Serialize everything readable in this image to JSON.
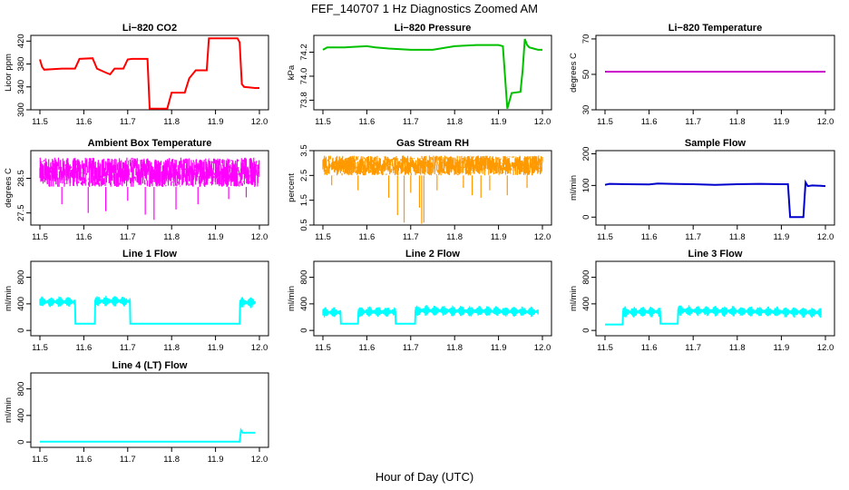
{
  "figure": {
    "title": "FEF_140707  1 Hz Diagnostics Zoomed AM",
    "xlabel": "Hour of Day (UTC)"
  },
  "chart_data": [
    {
      "type": "line",
      "title": "Li−820 CO2",
      "ylabel": "Licor ppm",
      "color": "#ff0000",
      "xlim": [
        11.5,
        12.0
      ],
      "ylim": [
        300,
        430
      ],
      "xticks": [
        "11.5",
        "11.6",
        "11.7",
        "11.8",
        "11.9",
        "12.0"
      ],
      "yticks": [
        {
          "v": 300,
          "t": "300"
        },
        {
          "v": 340,
          "t": "340"
        },
        {
          "v": 380,
          "t": "380"
        },
        {
          "v": 420,
          "t": "420"
        }
      ],
      "series": [
        {
          "x": [
            11.5,
            11.505,
            11.51,
            11.55,
            11.58,
            11.59,
            11.62,
            11.63,
            11.65,
            11.66,
            11.67,
            11.69,
            11.7,
            11.71,
            11.745,
            11.75,
            11.76,
            11.79,
            11.8,
            11.81,
            11.83,
            11.84,
            11.855,
            11.88,
            11.885,
            11.91,
            11.95,
            11.955,
            11.96,
            11.965,
            11.99,
            12.0
          ],
          "y": [
            388,
            375,
            370,
            372,
            372,
            389,
            390,
            372,
            365,
            362,
            372,
            372,
            388,
            389,
            389,
            302,
            302,
            302,
            330,
            330,
            330,
            355,
            369,
            369,
            425,
            425,
            425,
            418,
            345,
            340,
            338,
            338
          ]
        }
      ]
    },
    {
      "type": "line",
      "title": "Li−820 Pressure",
      "ylabel": "kPa",
      "color": "#00c000",
      "xlim": [
        11.5,
        12.0
      ],
      "ylim": [
        73.72,
        74.34
      ],
      "xticks": [
        "11.5",
        "11.6",
        "11.7",
        "11.8",
        "11.9",
        "12.0"
      ],
      "yticks": [
        {
          "v": 73.8,
          "t": "73.8"
        },
        {
          "v": 74.0,
          "t": "74.0"
        },
        {
          "v": 74.2,
          "t": "74.2"
        }
      ],
      "series": [
        {
          "x": [
            11.5,
            11.51,
            11.55,
            11.6,
            11.62,
            11.65,
            11.7,
            11.75,
            11.8,
            11.85,
            11.9,
            11.91,
            11.92,
            11.93,
            11.95,
            11.955,
            11.96,
            11.965,
            11.97,
            11.99,
            12.0
          ],
          "y": [
            74.22,
            74.24,
            74.24,
            74.25,
            74.24,
            74.23,
            74.22,
            74.22,
            74.25,
            74.26,
            74.26,
            74.25,
            73.73,
            73.86,
            73.87,
            74.05,
            74.31,
            74.26,
            74.24,
            74.22,
            74.22
          ]
        }
      ]
    },
    {
      "type": "line",
      "title": "Li−820 Temperature",
      "ylabel": "degrees C",
      "color": "#cc00cc",
      "xlim": [
        11.5,
        12.0
      ],
      "ylim": [
        30,
        72
      ],
      "xticks": [
        "11.5",
        "11.6",
        "11.7",
        "11.8",
        "11.9",
        "12.0"
      ],
      "yticks": [
        {
          "v": 30,
          "t": "30"
        },
        {
          "v": 50,
          "t": "50"
        },
        {
          "v": 70,
          "t": "70"
        }
      ],
      "series": [
        {
          "x": [
            11.5,
            12.0
          ],
          "y": [
            51.5,
            51.5
          ]
        }
      ]
    },
    {
      "type": "line",
      "title": "Ambient Box Temperature",
      "ylabel": "degrees C",
      "color": "#ff00ff",
      "xlim": [
        11.5,
        12.0
      ],
      "ylim": [
        27.15,
        29.3
      ],
      "xticks": [
        "11.5",
        "11.6",
        "11.7",
        "11.8",
        "11.9",
        "12.0"
      ],
      "yticks": [
        {
          "v": 27.5,
          "t": "27.5"
        },
        {
          "v": 28.5,
          "t": "28.5"
        }
      ],
      "band": {
        "low": 28.25,
        "high": 29.1
      },
      "spikes": [
        {
          "x": 11.55,
          "y": 27.75
        },
        {
          "x": 11.61,
          "y": 27.5
        },
        {
          "x": 11.65,
          "y": 27.55
        },
        {
          "x": 11.7,
          "y": 27.85
        },
        {
          "x": 11.74,
          "y": 27.45
        },
        {
          "x": 11.76,
          "y": 27.3
        },
        {
          "x": 11.81,
          "y": 27.6
        },
        {
          "x": 11.86,
          "y": 27.75
        },
        {
          "x": 11.93,
          "y": 27.9
        },
        {
          "x": 11.97,
          "y": 27.95
        }
      ]
    },
    {
      "type": "line",
      "title": "Gas Stream RH",
      "ylabel": "percent",
      "color": "#ff9900",
      "xlim": [
        11.5,
        12.0
      ],
      "ylim": [
        0.5,
        3.5
      ],
      "xticks": [
        "11.5",
        "11.6",
        "11.7",
        "11.8",
        "11.9",
        "12.0"
      ],
      "yticks": [
        {
          "v": 0.5,
          "t": "0.5"
        },
        {
          "v": 1.5,
          "t": "1.5"
        },
        {
          "v": 2.5,
          "t": "2.5"
        },
        {
          "v": 3.5,
          "t": "3.5"
        }
      ],
      "band": {
        "low": 2.5,
        "high": 3.3
      },
      "spikes": [
        {
          "x": 11.52,
          "y": 2.1
        },
        {
          "x": 11.58,
          "y": 1.9
        },
        {
          "x": 11.65,
          "y": 1.6
        },
        {
          "x": 11.67,
          "y": 0.9
        },
        {
          "x": 11.685,
          "y": 0.6
        },
        {
          "x": 11.7,
          "y": 1.8
        },
        {
          "x": 11.72,
          "y": 1.2
        },
        {
          "x": 11.725,
          "y": 0.55
        },
        {
          "x": 11.73,
          "y": 0.6
        },
        {
          "x": 11.76,
          "y": 1.9
        },
        {
          "x": 11.82,
          "y": 2.0
        },
        {
          "x": 11.84,
          "y": 1.7
        },
        {
          "x": 11.86,
          "y": 1.6
        },
        {
          "x": 11.88,
          "y": 1.9
        },
        {
          "x": 11.92,
          "y": 1.7
        },
        {
          "x": 11.965,
          "y": 2.0
        }
      ]
    },
    {
      "type": "line",
      "title": "Sample Flow",
      "ylabel": "ml/min",
      "color": "#0000cc",
      "xlim": [
        11.5,
        12.0
      ],
      "ylim": [
        -25,
        210
      ],
      "xticks": [
        "11.5",
        "11.6",
        "11.7",
        "11.8",
        "11.9",
        "12.0"
      ],
      "yticks": [
        {
          "v": 0,
          "t": "0"
        },
        {
          "v": 100,
          "t": "100"
        },
        {
          "v": 200,
          "t": "200"
        }
      ],
      "series": [
        {
          "x": [
            11.5,
            11.51,
            11.55,
            11.6,
            11.62,
            11.65,
            11.7,
            11.75,
            11.8,
            11.85,
            11.9,
            11.915,
            11.92,
            11.95,
            11.955,
            11.96,
            11.97,
            11.99,
            12.0
          ],
          "y": [
            102,
            105,
            104,
            103,
            106,
            105,
            104,
            102,
            104,
            105,
            104,
            104,
            0,
            0,
            110,
            98,
            100,
            99,
            98
          ]
        }
      ]
    },
    {
      "type": "line",
      "title": "Line 1 Flow",
      "ylabel": "ml/min",
      "color": "#00ffff",
      "xlim": [
        11.5,
        12.0
      ],
      "ylim": [
        -80,
        1040
      ],
      "xticks": [
        "11.5",
        "11.6",
        "11.7",
        "11.8",
        "11.9",
        "12.0"
      ],
      "yticks": [
        {
          "v": 0,
          "t": "0"
        },
        {
          "v": 400,
          "t": "400"
        },
        {
          "v": 800,
          "t": "800"
        }
      ],
      "series": [
        {
          "x": [
            11.5,
            11.58,
            11.581,
            11.625,
            11.626,
            11.705,
            11.706,
            11.955,
            11.956,
            11.99
          ],
          "y": [
            430,
            430,
            100,
            100,
            440,
            440,
            100,
            100,
            420,
            420
          ],
          "noise": [
            1,
            1,
            0,
            0,
            1,
            1,
            0,
            0,
            1,
            1
          ]
        }
      ]
    },
    {
      "type": "line",
      "title": "Line 2 Flow",
      "ylabel": "ml/min",
      "color": "#00ffff",
      "xlim": [
        11.5,
        12.0
      ],
      "ylim": [
        -80,
        1040
      ],
      "xticks": [
        "11.5",
        "11.6",
        "11.7",
        "11.8",
        "11.9",
        "12.0"
      ],
      "yticks": [
        {
          "v": 0,
          "t": "0"
        },
        {
          "v": 400,
          "t": "400"
        },
        {
          "v": 800,
          "t": "800"
        }
      ],
      "series": [
        {
          "x": [
            11.5,
            11.54,
            11.541,
            11.58,
            11.581,
            11.665,
            11.666,
            11.71,
            11.711,
            11.99
          ],
          "y": [
            270,
            270,
            100,
            100,
            280,
            280,
            100,
            100,
            300,
            280
          ],
          "noise": [
            1,
            1,
            0,
            0,
            1,
            1,
            0,
            0,
            1,
            1
          ]
        }
      ]
    },
    {
      "type": "line",
      "title": "Line 3 Flow",
      "ylabel": "ml/min",
      "color": "#00ffff",
      "xlim": [
        11.5,
        12.0
      ],
      "ylim": [
        -80,
        1040
      ],
      "xticks": [
        "11.5",
        "11.6",
        "11.7",
        "11.8",
        "11.9",
        "12.0"
      ],
      "yticks": [
        {
          "v": 0,
          "t": "0"
        },
        {
          "v": 400,
          "t": "400"
        },
        {
          "v": 800,
          "t": "800"
        }
      ],
      "series": [
        {
          "x": [
            11.5,
            11.54,
            11.541,
            11.625,
            11.626,
            11.665,
            11.666,
            11.99
          ],
          "y": [
            90,
            90,
            280,
            280,
            100,
            100,
            300,
            270
          ],
          "noise": [
            0,
            0,
            1,
            1,
            0,
            0,
            1,
            1
          ]
        }
      ]
    },
    {
      "type": "line",
      "title": "Line 4 (LT) Flow",
      "ylabel": "ml/min",
      "color": "#00ffff",
      "xlim": [
        11.5,
        12.0
      ],
      "ylim": [
        -80,
        1040
      ],
      "xticks": [
        "11.5",
        "11.6",
        "11.7",
        "11.8",
        "11.9",
        "12.0"
      ],
      "yticks": [
        {
          "v": 0,
          "t": "0"
        },
        {
          "v": 400,
          "t": "400"
        },
        {
          "v": 800,
          "t": "800"
        }
      ],
      "series": [
        {
          "x": [
            11.5,
            11.955,
            11.958,
            11.962,
            11.99
          ],
          "y": [
            5,
            5,
            180,
            140,
            140
          ]
        }
      ]
    }
  ]
}
